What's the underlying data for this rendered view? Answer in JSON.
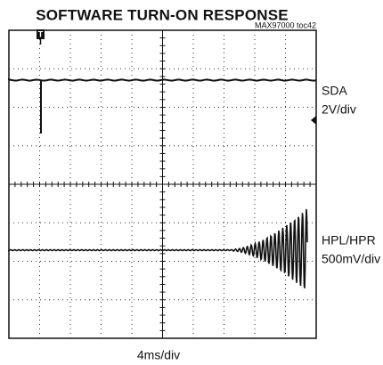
{
  "header": {
    "title": "SOFTWARE TURN-ON RESPONSE",
    "note": "MAX97000 toc42"
  },
  "channels": [
    {
      "name": "SDA",
      "scale": "2V/div"
    },
    {
      "name": "HPL/HPR",
      "scale": "500mV/div"
    }
  ],
  "timebase": "4ms/div",
  "trigger": "T"
}
